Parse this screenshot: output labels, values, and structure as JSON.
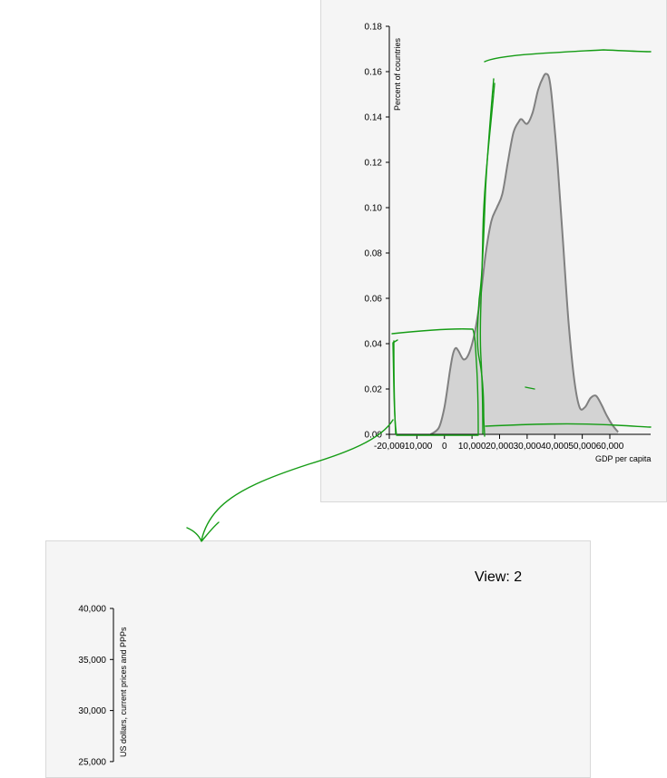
{
  "chart_data": [
    {
      "type": "area",
      "xlabel": "GDP per capita",
      "ylabel": "Percent of countries",
      "xlim": [
        -20000,
        60000
      ],
      "ylim": [
        0,
        0.18
      ],
      "x_ticks": [
        "-20,000",
        "-10,000",
        "0",
        "10,000",
        "20,000",
        "30,000",
        "40,000",
        "50,000",
        "60,000"
      ],
      "y_ticks": [
        "0.00",
        "0.02",
        "0.04",
        "0.06",
        "0.08",
        "0.10",
        "0.12",
        "0.14",
        "0.16",
        "0.18"
      ],
      "fill_color": "#d3d3d3",
      "line_color": "#808080",
      "x": [
        -5000,
        -2000,
        0,
        2000,
        3000,
        4000,
        5000,
        7000,
        9000,
        11000,
        13000,
        15000,
        17000,
        19000,
        21000,
        23000,
        25000,
        27000,
        28000,
        30000,
        32000,
        34000,
        36000,
        37000,
        38000,
        39000,
        41000,
        43000,
        45000,
        47000,
        49000,
        51000,
        53000,
        55000,
        57000,
        59000,
        61000,
        63000
      ],
      "y": [
        0.0,
        0.003,
        0.012,
        0.028,
        0.035,
        0.038,
        0.037,
        0.033,
        0.036,
        0.045,
        0.06,
        0.08,
        0.094,
        0.1,
        0.106,
        0.12,
        0.133,
        0.138,
        0.139,
        0.137,
        0.142,
        0.152,
        0.158,
        0.159,
        0.157,
        0.148,
        0.12,
        0.085,
        0.05,
        0.025,
        0.012,
        0.012,
        0.016,
        0.017,
        0.013,
        0.008,
        0.004,
        0.001
      ]
    },
    {
      "type": "line",
      "title": "View: 2",
      "ylabel": "US dollars, current prices and PPPs",
      "ylim": [
        25000,
        40000
      ],
      "y_ticks": [
        "25,000",
        "30,000",
        "35,000",
        "40,000"
      ]
    }
  ]
}
